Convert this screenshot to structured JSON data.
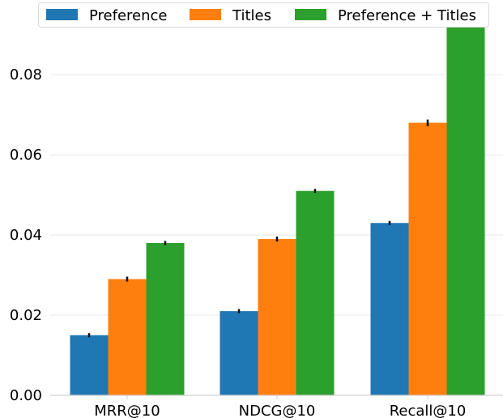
{
  "chart_data": {
    "type": "bar",
    "title": "",
    "xlabel": "",
    "ylabel": "",
    "categories": [
      "MRR@10",
      "NDCG@10",
      "Recall@10"
    ],
    "series": [
      {
        "name": "Preference",
        "color": "#1f77b4",
        "values": [
          0.015,
          0.021,
          0.043
        ],
        "errors": [
          0.0002,
          0.0002,
          0.0002
        ]
      },
      {
        "name": "Titles",
        "color": "#ff7f0e",
        "values": [
          0.029,
          0.039,
          0.068
        ],
        "errors": [
          0.0003,
          0.0003,
          0.0005
        ]
      },
      {
        "name": "Preference + Titles",
        "color": "#2ca02c",
        "values": [
          0.038,
          0.051,
          0.094
        ],
        "errors": [
          0.0002,
          0.0002,
          0.001
        ]
      }
    ],
    "ylim": [
      0,
      0.095
    ],
    "yticks": [
      0.0,
      0.02,
      0.04,
      0.06,
      0.08
    ],
    "ytick_labels": [
      "0.00",
      "0.02",
      "0.04",
      "0.06",
      "0.08"
    ],
    "grid": "horizontal",
    "legend_position": "top"
  }
}
